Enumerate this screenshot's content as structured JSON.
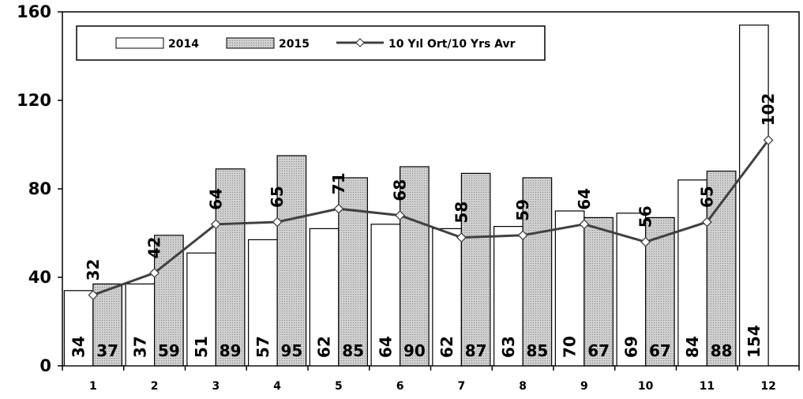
{
  "chart_data": {
    "type": "bar",
    "categories": [
      "1",
      "2",
      "3",
      "4",
      "5",
      "6",
      "7",
      "8",
      "9",
      "10",
      "11",
      "12"
    ],
    "series": [
      {
        "name": "2014",
        "type": "bar",
        "values": [
          34,
          37,
          51,
          57,
          62,
          64,
          62,
          63,
          70,
          69,
          84,
          154
        ],
        "fill": "#ffffff"
      },
      {
        "name": "2015",
        "type": "bar",
        "values": [
          37,
          59,
          89,
          95,
          85,
          90,
          87,
          85,
          67,
          67,
          88,
          null
        ],
        "fill": "#c8c8c8",
        "pattern": "dotted"
      },
      {
        "name": "10 Yıl Ort/10 Yrs Avr",
        "type": "line",
        "values": [
          32,
          42,
          64,
          65,
          71,
          68,
          58,
          59,
          64,
          56,
          65,
          102
        ],
        "color": "#404040",
        "marker": "diamond"
      }
    ],
    "ylim": [
      0,
      160
    ],
    "yticks": [
      0,
      40,
      80,
      120,
      160
    ],
    "grid": false,
    "legend": "top-left"
  }
}
